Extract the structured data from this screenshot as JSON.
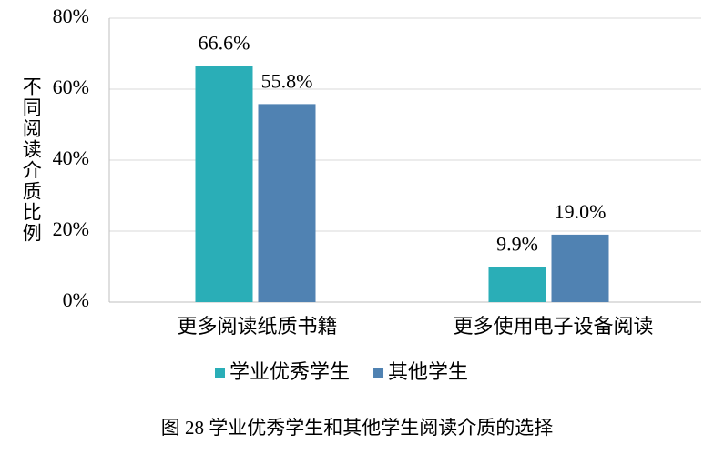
{
  "chart_data": {
    "type": "bar",
    "y_label": "不同阅读介质比例",
    "caption": "图 28   学业优秀学生和其他学生阅读介质的选择",
    "categories": [
      "更多阅读纸质书籍",
      "更多使用电子设备阅读"
    ],
    "series": [
      {
        "name": "学业优秀学生",
        "color": "#2aaeb7",
        "values": [
          66.6,
          9.9
        ],
        "value_labels": [
          "66.6%",
          "9.9%"
        ]
      },
      {
        "name": "其他学生",
        "color": "#5082b2",
        "values": [
          55.8,
          19.0
        ],
        "value_labels": [
          "55.8%",
          "19.0%"
        ]
      }
    ],
    "ylim": [
      0,
      80
    ],
    "yticks": [
      {
        "value": 0,
        "label": "0%"
      },
      {
        "value": 20,
        "label": "20%"
      },
      {
        "value": 40,
        "label": "40%"
      },
      {
        "value": 60,
        "label": "60%"
      },
      {
        "value": 80,
        "label": "80%"
      }
    ],
    "grid": true
  }
}
